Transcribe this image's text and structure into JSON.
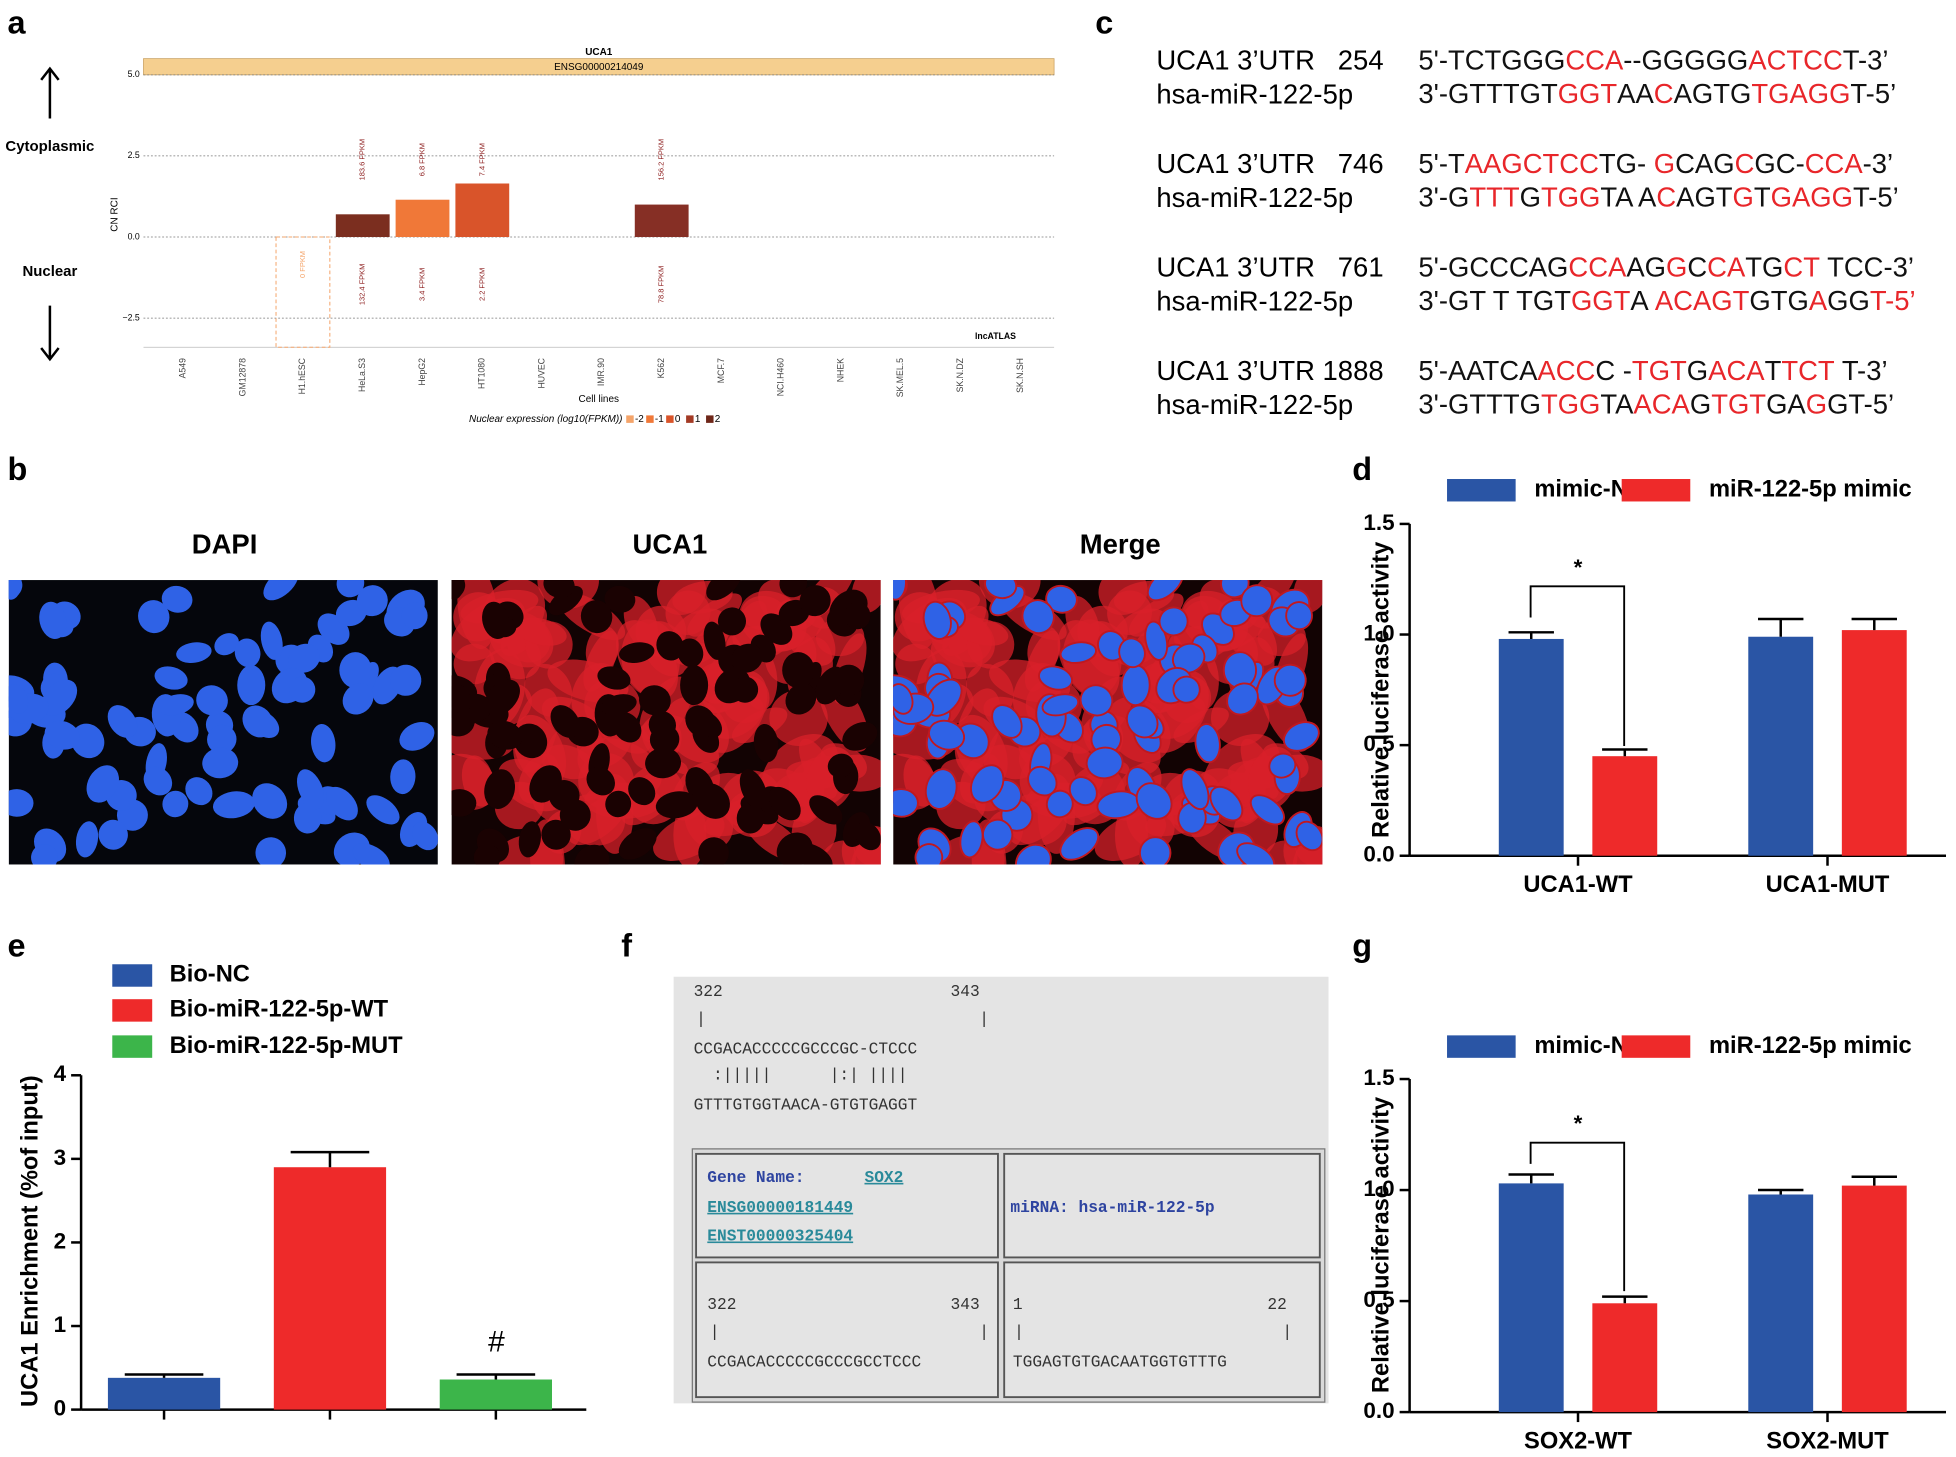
{
  "panel_labels": [
    "a",
    "b",
    "c",
    "d",
    "e",
    "f",
    "g"
  ],
  "chart_data": [
    {
      "type": "bar",
      "title": "UCA1",
      "subtitle": "ENSG00000214049",
      "y_label": "CN RCI",
      "x_label": "Cell lines",
      "categories": [
        "A549",
        "GM12878",
        "H1.hESC",
        "HeLa.S3",
        "HepG2",
        "HT1080",
        "HUVEC",
        "IMR.90",
        "K562",
        "MCF.7",
        "NCI.H460",
        "NHEK",
        "SK.MEL.5",
        "SK.N.DZ",
        "SK.N.SH"
      ],
      "values": [
        null,
        null,
        -3.4,
        0.7,
        1.15,
        1.65,
        null,
        null,
        1.0,
        null,
        null,
        null,
        null,
        null,
        null
      ],
      "colors": [
        null,
        null,
        "#f4a46a",
        "#7b2e1f",
        "#f07838",
        "#d9542a",
        null,
        null,
        "#862f25",
        null,
        null,
        null,
        null,
        null,
        null
      ],
      "dashed": [
        "H1.hESC"
      ],
      "top_labels": [
        null,
        null,
        null,
        "183.6 FPKM",
        "6.8 FPKM",
        "7.4 FPKM",
        null,
        null,
        "156.2 FPKM",
        null,
        null,
        null,
        null,
        null,
        null
      ],
      "bottom_labels": [
        null,
        null,
        "0 FPKM",
        "132.4 FPKM",
        "3.4 FPKM",
        "2.2 FPKM",
        null,
        null,
        "78.8 FPKM",
        null,
        null,
        null,
        null,
        null,
        null
      ],
      "ylim": [
        -3.4,
        5.0
      ],
      "yticks": [
        {
          "value": -2.5,
          "label": "−2.5"
        },
        {
          "value": 0,
          "label": "0.0"
        },
        2.5,
        {
          "value": 5,
          "label": "5.0"
        }
      ],
      "grid": true,
      "annotations": [
        "Cytoplasmic",
        "Nuclear",
        "lncATLAS"
      ],
      "legend": {
        "title": "Nuclear expression (log10(FPKM))",
        "levels": [
          -2,
          -1,
          0,
          1,
          2
        ],
        "colors": [
          "#f4a46a",
          "#f07838",
          "#d9542a",
          "#a33a25",
          "#6e2618"
        ]
      }
    },
    {
      "type": "bar",
      "y_label": "Relative luciferase activity",
      "categories": [
        "UCA1-WT",
        "UCA1-MUT"
      ],
      "series": [
        {
          "name": "mimic-NC",
          "color": "#2a55a5",
          "values": [
            0.98,
            0.99
          ],
          "errors": [
            0.03,
            0.08
          ]
        },
        {
          "name": "miR-122-5p mimic",
          "color": "#ee2a2a",
          "values": [
            0.45,
            1.02
          ],
          "errors": [
            0.03,
            0.05
          ]
        }
      ],
      "ylim": [
        0,
        1.5
      ],
      "yticks": [
        {
          "value": 0,
          "label": "0.0"
        },
        0.5,
        {
          "value": 1,
          "label": "1.0"
        },
        1.5
      ],
      "significance": "*"
    },
    {
      "type": "bar",
      "y_label": "UCA1 Enrichment (%of input)",
      "categories": [
        null,
        null,
        null
      ],
      "series": [
        {
          "name": "Bio-NC",
          "color": "#2a55a5",
          "values": [
            0.38,
            null,
            null
          ],
          "errors": [
            0.04,
            null,
            null
          ]
        },
        {
          "name": "Bio-miR-122-5p-WT",
          "color": "#ee2a2a",
          "values": [
            null,
            2.9,
            null
          ],
          "errors": [
            null,
            0.18,
            null
          ]
        },
        {
          "name": "Bio-miR-122-5p-MUT",
          "color": "#3cb54a",
          "values": [
            null,
            null,
            0.36
          ],
          "errors": [
            null,
            null,
            0.06
          ]
        }
      ],
      "ylim": [
        0,
        4
      ],
      "yticks": [
        0,
        1,
        2,
        3,
        4
      ],
      "significance": "#"
    },
    {
      "type": "bar",
      "y_label": "Relative luciferase activity",
      "categories": [
        "SOX2-WT",
        "SOX2-MUT"
      ],
      "series": [
        {
          "name": "mimic-NC",
          "color": "#2a55a5",
          "values": [
            1.03,
            0.98
          ],
          "errors": [
            0.04,
            0.02
          ]
        },
        {
          "name": "miR-122-5p mimic",
          "color": "#ee2a2a",
          "values": [
            0.49,
            1.02
          ],
          "errors": [
            0.03,
            0.04
          ]
        }
      ],
      "ylim": [
        0,
        1.5
      ],
      "yticks": [
        {
          "value": 0,
          "label": "0.0"
        },
        0.5,
        {
          "value": 1,
          "label": "1.0"
        },
        1.5
      ],
      "significance": "*"
    }
  ],
  "sequences": {
    "rows": [
      {
        "label": "UCA1 3’UTR   254",
        "seq": [
          "5'-TCTGGG",
          "CCA",
          "--GGGGG",
          "ACTCC",
          "T-3’"
        ]
      },
      {
        "label": "hsa-miR-122-5p",
        "seq": [
          "3'-GTTTGT",
          "GGT",
          "AA",
          "C",
          "AGTG",
          "TGAGG",
          "T-5’"
        ]
      },
      {
        "label": "UCA1 3’UTR   746",
        "seq": [
          "5'-T",
          "AAGCTCC",
          "TG- ",
          "G",
          "CAG",
          "C",
          "GC-",
          "CCA",
          "-3’"
        ]
      },
      {
        "label": "hsa-miR-122-5p",
        "seq": [
          "3'-G",
          "TTT",
          "G",
          "TGG",
          "TA A",
          "C",
          "AGT",
          "G",
          "T",
          "GAGG",
          "T-5’"
        ]
      },
      {
        "label": "UCA1 3’UTR   761",
        "seq": [
          "5'-GCCCAG",
          "CCA",
          "AG",
          "G",
          "C",
          "CA",
          "TG",
          "CT",
          " TCC-3’"
        ]
      },
      {
        "label": "hsa-miR-122-5p",
        "seq": [
          "3'-GT T TGT",
          "GGT",
          "A ",
          "ACAGT",
          "GTG",
          "A",
          "GG",
          "T-5’"
        ]
      },
      {
        "label": "UCA1 3’UTR 1888",
        "seq": [
          "5'-AATCA",
          "ACC",
          "C -",
          "TGT",
          "G",
          "ACA",
          "T",
          "TCT",
          " T-3’"
        ]
      },
      {
        "label": "hsa-miR-122-5p",
        "seq": [
          "3'-GTTTG",
          "TGG",
          "TA",
          "ACA",
          "G",
          "TGT",
          "GA",
          "G",
          "GT-5’"
        ]
      }
    ]
  },
  "microscopy": {
    "titles": [
      "DAPI",
      "UCA1",
      "Merge"
    ]
  },
  "alignment": {
    "start": 322,
    "end": 343,
    "bar": "|",
    "target": "CCGACACCCCCGCCCGC-CTCCC",
    "match": "  :|||||      |:| ||||",
    "mirna": "GTTTGTGGTAACA-GTGTGAGGT",
    "gene_label": "Gene Name:",
    "gene": "SOX2",
    "ensg": "ENSG00000181449",
    "enst": "ENST00000325404",
    "mirna_label": "miRNA: hsa-miR-122-5p",
    "target_full": "CCGACACCCCCGCCCGCCTCCC",
    "mirna_start": 1,
    "mirna_end": 22,
    "mirna_full": "TGGAGTGTGACAATGGTGTTTG"
  }
}
